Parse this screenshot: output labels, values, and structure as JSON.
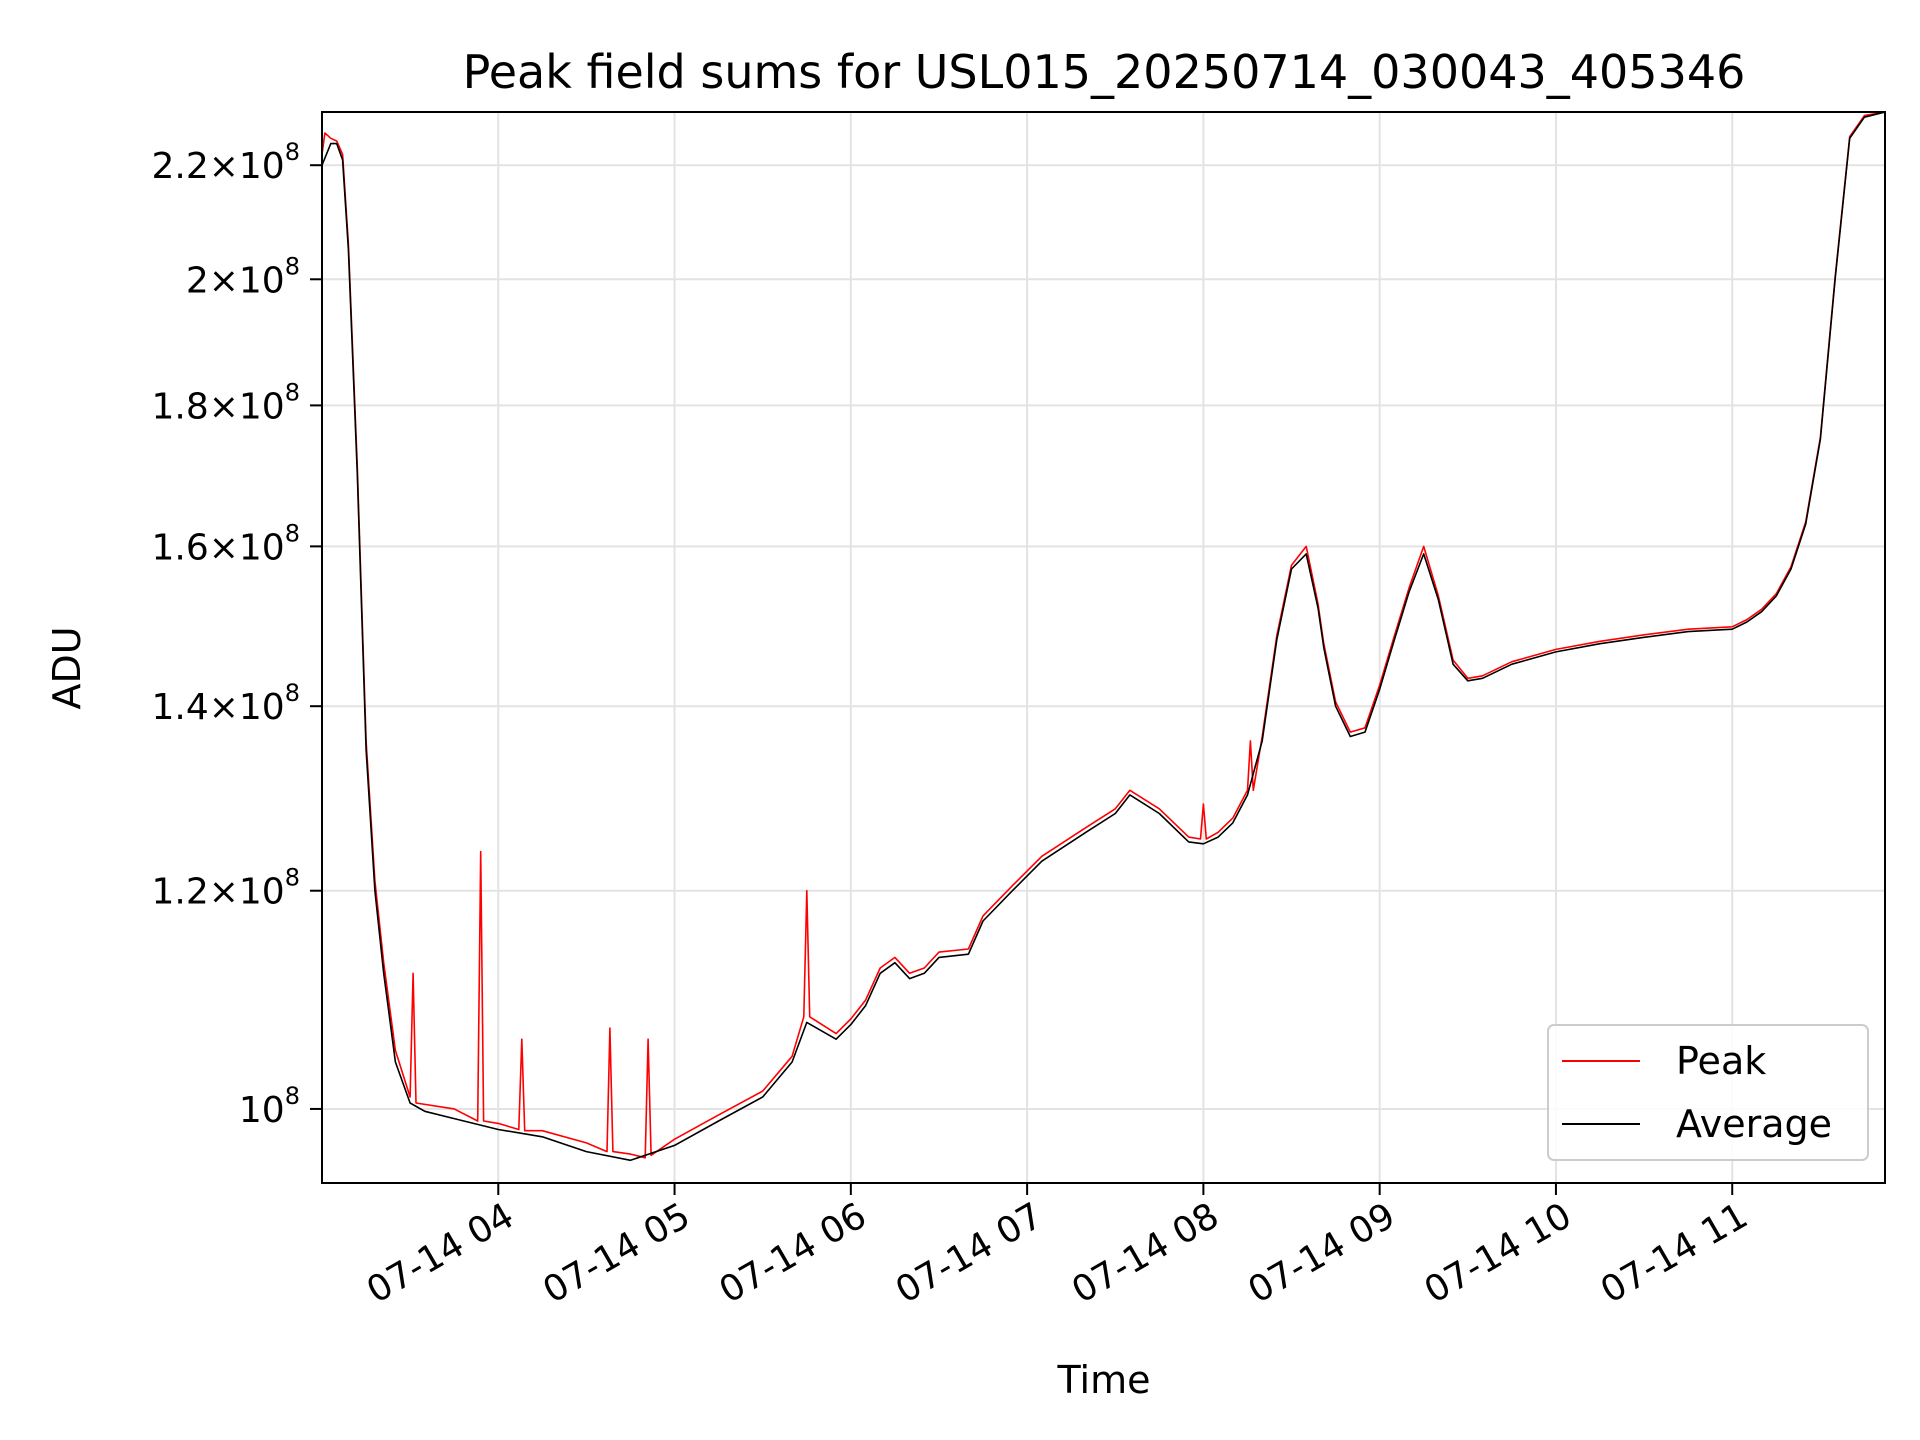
{
  "chart_data": {
    "type": "line",
    "title": "Peak field sums for USL015_20250714_030043_405346",
    "xlabel": "Time",
    "ylabel": "ADU",
    "y_scale": "log",
    "xlim": [
      "2025-07-14T03:00",
      "2025-07-14T11:52"
    ],
    "ylim": [
      94000000.0,
      230000000.0
    ],
    "grid": true,
    "legend": "lower-right",
    "x_ticks": [
      {
        "label": "07-14 04",
        "t": "2025-07-14T04:00"
      },
      {
        "label": "07-14 05",
        "t": "2025-07-14T05:00"
      },
      {
        "label": "07-14 06",
        "t": "2025-07-14T06:00"
      },
      {
        "label": "07-14 07",
        "t": "2025-07-14T07:00"
      },
      {
        "label": "07-14 08",
        "t": "2025-07-14T08:00"
      },
      {
        "label": "07-14 09",
        "t": "2025-07-14T09:00"
      },
      {
        "label": "07-14 10",
        "t": "2025-07-14T10:00"
      },
      {
        "label": "07-14 11",
        "t": "2025-07-14T11:00"
      }
    ],
    "y_ticks": [
      {
        "mant": "",
        "exp": "8",
        "v": 100000000.0
      },
      {
        "mant": "1.2",
        "exp": "8",
        "v": 120000000.0
      },
      {
        "mant": "1.4",
        "exp": "8",
        "v": 140000000.0
      },
      {
        "mant": "1.6",
        "exp": "8",
        "v": 160000000.0
      },
      {
        "mant": "1.8",
        "exp": "8",
        "v": 180000000.0
      },
      {
        "mant": "2",
        "exp": "8",
        "v": 200000000.0
      },
      {
        "mant": "2.2",
        "exp": "8",
        "v": 220000000.0
      }
    ],
    "series": [
      {
        "name": "Average",
        "color": "#000000",
        "x": [
          "2025-07-14T03:00",
          "2025-07-14T03:03",
          "2025-07-14T03:05",
          "2025-07-14T03:07",
          "2025-07-14T03:09",
          "2025-07-14T03:12",
          "2025-07-14T03:15",
          "2025-07-14T03:18",
          "2025-07-14T03:21",
          "2025-07-14T03:25",
          "2025-07-14T03:30",
          "2025-07-14T03:35",
          "2025-07-14T03:45",
          "2025-07-14T04:00",
          "2025-07-14T04:15",
          "2025-07-14T04:30",
          "2025-07-14T04:45",
          "2025-07-14T05:00",
          "2025-07-14T05:15",
          "2025-07-14T05:30",
          "2025-07-14T05:40",
          "2025-07-14T05:45",
          "2025-07-14T05:55",
          "2025-07-14T06:00",
          "2025-07-14T06:05",
          "2025-07-14T06:10",
          "2025-07-14T06:15",
          "2025-07-14T06:20",
          "2025-07-14T06:25",
          "2025-07-14T06:30",
          "2025-07-14T06:40",
          "2025-07-14T06:45",
          "2025-07-14T06:55",
          "2025-07-14T07:05",
          "2025-07-14T07:20",
          "2025-07-14T07:30",
          "2025-07-14T07:35",
          "2025-07-14T07:45",
          "2025-07-14T07:55",
          "2025-07-14T08:00",
          "2025-07-14T08:05",
          "2025-07-14T08:10",
          "2025-07-14T08:15",
          "2025-07-14T08:20",
          "2025-07-14T08:25",
          "2025-07-14T08:30",
          "2025-07-14T08:35",
          "2025-07-14T08:39",
          "2025-07-14T08:41",
          "2025-07-14T08:45",
          "2025-07-14T08:50",
          "2025-07-14T08:55",
          "2025-07-14T09:00",
          "2025-07-14T09:05",
          "2025-07-14T09:10",
          "2025-07-14T09:15",
          "2025-07-14T09:20",
          "2025-07-14T09:25",
          "2025-07-14T09:30",
          "2025-07-14T09:35",
          "2025-07-14T09:45",
          "2025-07-14T10:00",
          "2025-07-14T10:15",
          "2025-07-14T10:30",
          "2025-07-14T10:45",
          "2025-07-14T11:00",
          "2025-07-14T11:05",
          "2025-07-14T11:10",
          "2025-07-14T11:15",
          "2025-07-14T11:20",
          "2025-07-14T11:25",
          "2025-07-14T11:30",
          "2025-07-14T11:35",
          "2025-07-14T11:40",
          "2025-07-14T11:45",
          "2025-07-14T11:52"
        ],
        "y": [
          220000000.0,
          224000000.0,
          224000000.0,
          221000000.0,
          205000000.0,
          170000000.0,
          135000000.0,
          120000000.0,
          112000000.0,
          104000000.0,
          100500000.0,
          99800000.0,
          99200000.0,
          98300000.0,
          97700000.0,
          96500000.0,
          95800000.0,
          97000000.0,
          99000000.0,
          101000000.0,
          104000000.0,
          107500000.0,
          106000000.0,
          107300000.0,
          109000000.0,
          112000000.0,
          113000000.0,
          111500000.0,
          112000000.0,
          113500000.0,
          113800000.0,
          117000000.0,
          120000000.0,
          123000000.0,
          126000000.0,
          128000000.0,
          130000000.0,
          128000000.0,
          125000000.0,
          124800000.0,
          125500000.0,
          127000000.0,
          130000000.0,
          136000000.0,
          148000000.0,
          157000000.0,
          159000000.0,
          152000000.0,
          147000000.0,
          140000000.0,
          136500000.0,
          137000000.0,
          142000000.0,
          148000000.0,
          154000000.0,
          159000000.0,
          153000000.0,
          145000000.0,
          143000000.0,
          143300000.0,
          145000000.0,
          146500000.0,
          147500000.0,
          148300000.0,
          149000000.0,
          149300000.0,
          150200000.0,
          151500000.0,
          153500000.0,
          157000000.0,
          163000000.0,
          175000000.0,
          200000000.0,
          225000000.0,
          229000000.0,
          230000000.0
        ]
      },
      {
        "name": "Peak",
        "color": "#ff0000",
        "x": [
          "2025-07-14T03:00",
          "2025-07-14T03:01",
          "2025-07-14T03:03",
          "2025-07-14T03:05",
          "2025-07-14T03:07",
          "2025-07-14T03:09",
          "2025-07-14T03:12",
          "2025-07-14T03:15",
          "2025-07-14T03:18",
          "2025-07-14T03:21",
          "2025-07-14T03:25",
          "2025-07-14T03:30",
          "2025-07-14T03:31",
          "2025-07-14T03:32",
          "2025-07-14T03:45",
          "2025-07-14T03:53",
          "2025-07-14T03:54",
          "2025-07-14T03:55",
          "2025-07-14T04:00",
          "2025-07-14T04:07",
          "2025-07-14T04:08",
          "2025-07-14T04:09",
          "2025-07-14T04:15",
          "2025-07-14T04:30",
          "2025-07-14T04:37",
          "2025-07-14T04:38",
          "2025-07-14T04:39",
          "2025-07-14T04:45",
          "2025-07-14T04:50",
          "2025-07-14T04:51",
          "2025-07-14T04:52",
          "2025-07-14T05:00",
          "2025-07-14T05:15",
          "2025-07-14T05:30",
          "2025-07-14T05:40",
          "2025-07-14T05:44",
          "2025-07-14T05:45",
          "2025-07-14T05:46",
          "2025-07-14T05:55",
          "2025-07-14T06:00",
          "2025-07-14T06:05",
          "2025-07-14T06:10",
          "2025-07-14T06:15",
          "2025-07-14T06:20",
          "2025-07-14T06:25",
          "2025-07-14T06:30",
          "2025-07-14T06:40",
          "2025-07-14T06:45",
          "2025-07-14T06:55",
          "2025-07-14T07:05",
          "2025-07-14T07:20",
          "2025-07-14T07:30",
          "2025-07-14T07:35",
          "2025-07-14T07:45",
          "2025-07-14T07:55",
          "2025-07-14T07:59",
          "2025-07-14T08:00",
          "2025-07-14T08:01",
          "2025-07-14T08:05",
          "2025-07-14T08:10",
          "2025-07-14T08:15",
          "2025-07-14T08:16",
          "2025-07-14T08:17",
          "2025-07-14T08:20",
          "2025-07-14T08:25",
          "2025-07-14T08:30",
          "2025-07-14T08:35",
          "2025-07-14T08:39",
          "2025-07-14T08:41",
          "2025-07-14T08:45",
          "2025-07-14T08:50",
          "2025-07-14T08:55",
          "2025-07-14T09:00",
          "2025-07-14T09:05",
          "2025-07-14T09:10",
          "2025-07-14T09:15",
          "2025-07-14T09:20",
          "2025-07-14T09:25",
          "2025-07-14T09:30",
          "2025-07-14T09:35",
          "2025-07-14T09:45",
          "2025-07-14T10:00",
          "2025-07-14T10:15",
          "2025-07-14T10:30",
          "2025-07-14T10:45",
          "2025-07-14T11:00",
          "2025-07-14T11:05",
          "2025-07-14T11:10",
          "2025-07-14T11:15",
          "2025-07-14T11:20",
          "2025-07-14T11:25",
          "2025-07-14T11:30",
          "2025-07-14T11:35",
          "2025-07-14T11:40",
          "2025-07-14T11:45",
          "2025-07-14T11:52"
        ],
        "y": [
          222000000.0,
          226000000.0,
          225000000.0,
          224500000.0,
          222000000.0,
          206000000.0,
          171000000.0,
          136000000.0,
          121000000.0,
          113000000.0,
          105000000.0,
          101000000.0,
          112000000.0,
          100500000.0,
          100000000.0,
          99000000.0,
          124000000.0,
          99000000.0,
          98800000.0,
          98300000.0,
          106000000.0,
          98200000.0,
          98200000.0,
          97200000.0,
          96500000.0,
          107000000.0,
          96500000.0,
          96300000.0,
          96000000.0,
          106000000.0,
          96200000.0,
          97500000.0,
          99500000.0,
          101500000.0,
          104500000.0,
          108000000.0,
          120000000.0,
          108000000.0,
          106500000.0,
          107800000.0,
          109500000.0,
          112500000.0,
          113500000.0,
          112000000.0,
          112500000.0,
          114000000.0,
          114300000.0,
          117500000.0,
          120500000.0,
          123500000.0,
          126500000.0,
          128500000.0,
          130500000.0,
          128500000.0,
          125500000.0,
          125300000.0,
          129000000.0,
          125300000.0,
          126000000.0,
          127500000.0,
          130500000.0,
          136000000.0,
          130500000.0,
          136500000.0,
          148500000.0,
          157500000.0,
          160000000.0,
          152500000.0,
          147500000.0,
          140500000.0,
          137000000.0,
          137500000.0,
          142500000.0,
          148500000.0,
          154500000.0,
          160000000.0,
          153500000.0,
          145500000.0,
          143300000.0,
          143600000.0,
          145300000.0,
          146800000.0,
          147800000.0,
          148600000.0,
          149300000.0,
          149600000.0,
          150500000.0,
          151800000.0,
          153800000.0,
          157300000.0,
          163300000.0,
          175300000.0,
          200300000.0,
          225300000.0,
          229300000.0,
          230000000.0
        ]
      }
    ]
  }
}
